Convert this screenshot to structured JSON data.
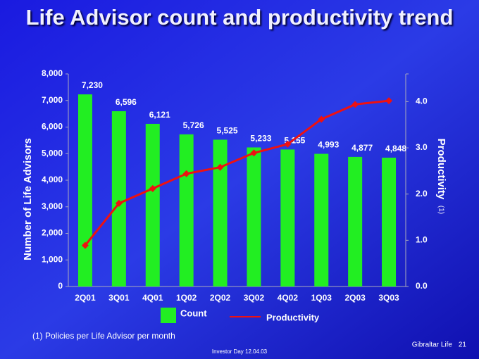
{
  "chart_data": {
    "type": "bar_line",
    "title": "Life Advisor count and productivity trend",
    "ylabel": "Number of Life Advisors",
    "y2label": "Productivity",
    "y2label_note": "(1)",
    "categories": [
      "2Q01",
      "3Q01",
      "4Q01",
      "1Q02",
      "2Q02",
      "3Q02",
      "4Q02",
      "1Q03",
      "2Q03",
      "3Q03"
    ],
    "series": [
      {
        "name": "Count",
        "type": "bar",
        "color": "#22ee22",
        "values": [
          7230,
          6596,
          6121,
          5726,
          5525,
          5233,
          5155,
          4993,
          4877,
          4848
        ],
        "value_labels": [
          "7,230",
          "6,596",
          "6,121",
          "5,726",
          "5,525",
          "5,233",
          "5,155",
          "4,993",
          "4,877",
          "4,848"
        ]
      },
      {
        "name": "Productivity",
        "type": "line",
        "color": "#ee1111",
        "axis": "y2",
        "values": [
          0.89,
          1.8,
          2.12,
          2.44,
          2.58,
          2.89,
          3.08,
          3.62,
          3.94,
          4.02
        ]
      }
    ],
    "ylim": [
      0,
      8000
    ],
    "yticks": [
      0,
      {
        "value": 1000,
        "label": "1,000"
      },
      {
        "value": 2000,
        "label": "2,000"
      },
      {
        "value": 3000,
        "label": "3,000"
      },
      {
        "value": 4000,
        "label": "4,000"
      },
      {
        "value": 5000,
        "label": "5,000"
      },
      {
        "value": 6000,
        "label": "6,000"
      },
      {
        "value": 7000,
        "label": "7,000"
      },
      {
        "value": 8000,
        "label": "8,000"
      }
    ],
    "y2lim": [
      0,
      4.6
    ],
    "y2ticks": [
      {
        "value": 0,
        "label": "0.0"
      },
      {
        "value": 1,
        "label": "1.0"
      },
      {
        "value": 2,
        "label": "2.0"
      },
      {
        "value": 3,
        "label": "3.0"
      },
      {
        "value": 4,
        "label": "4.0"
      }
    ],
    "footnote": "(1) Policies per Life Advisor per month",
    "footer": "Investor Day 12.04.03",
    "company": "Gibraltar Life",
    "page_number": "21"
  }
}
